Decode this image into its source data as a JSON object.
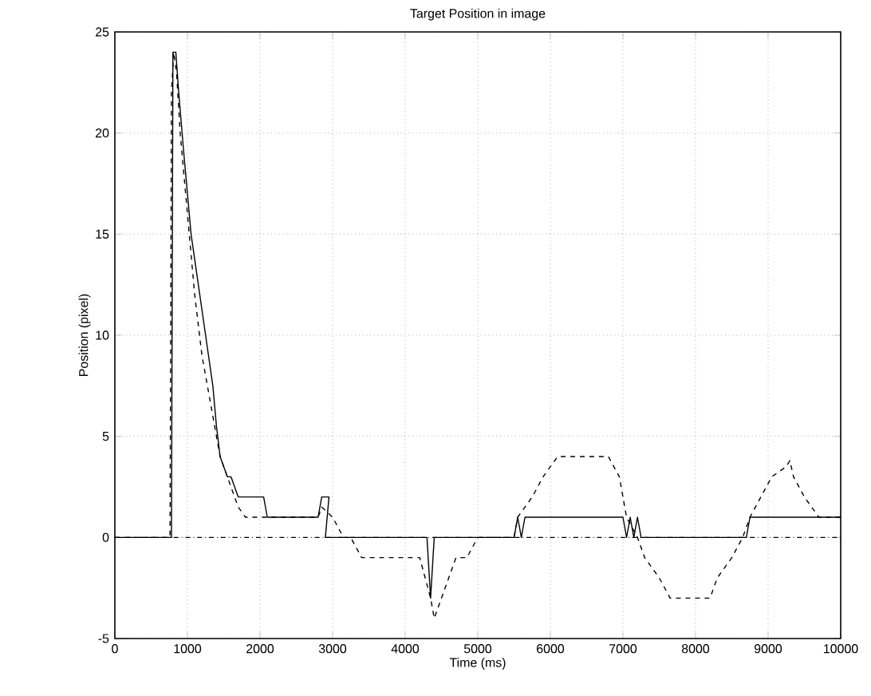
{
  "chart_data": {
    "type": "line",
    "title": "Target Position in image",
    "xlabel": "Time (ms)",
    "ylabel": "Position (pixel)",
    "xlim": [
      0,
      10000
    ],
    "ylim": [
      -5,
      25
    ],
    "xticks": [
      0,
      1000,
      2000,
      3000,
      4000,
      5000,
      6000,
      7000,
      8000,
      9000,
      10000
    ],
    "yticks": [
      -5,
      0,
      5,
      10,
      15,
      20,
      25
    ],
    "grid": true,
    "ref_lines": [
      {
        "axis": "y",
        "value": 0,
        "color": "#000000",
        "line_style": "dashdot"
      }
    ],
    "series": [
      {
        "color": "#000000",
        "line_style": "solid",
        "x": [
          0,
          780,
          800,
          840,
          880,
          950,
          1050,
          1150,
          1250,
          1350,
          1400,
          1450,
          1500,
          1550,
          1600,
          1650,
          1700,
          1850,
          1850,
          2050,
          2100,
          2800,
          2850,
          2950,
          2900,
          4300,
          4350,
          4400,
          4450,
          5500,
          5550,
          5600,
          5650,
          7000,
          7050,
          7100,
          7150,
          7200,
          7250,
          7300,
          8700,
          8750,
          8800,
          10000
        ],
        "values": [
          0,
          0,
          24,
          24,
          22,
          19,
          15,
          12.5,
          10,
          7.5,
          5.5,
          4,
          3.5,
          3,
          3,
          2.5,
          2,
          2,
          2,
          2,
          1,
          1,
          2,
          2,
          0,
          0,
          -3,
          0,
          0,
          0,
          1,
          0,
          1,
          1,
          0,
          1,
          0,
          1,
          0,
          0,
          0,
          1,
          1,
          1
        ]
      },
      {
        "color": "#000000",
        "line_style": "dashed",
        "x": [
          0,
          760,
          780,
          810,
          850,
          900,
          1000,
          1100,
          1200,
          1300,
          1400,
          1450,
          1500,
          1550,
          1600,
          1650,
          1700,
          1800,
          2100,
          2150,
          2800,
          2850,
          3000,
          3150,
          3250,
          3400,
          4200,
          4350,
          4400,
          4500,
          4600,
          4700,
          4850,
          5000,
          5500,
          5550,
          5750,
          5900,
          6100,
          6800,
          6950,
          7000,
          7050,
          7200,
          7300,
          7500,
          7650,
          8200,
          8300,
          8500,
          8650,
          8750,
          8900,
          9050,
          9250,
          9300,
          9350,
          9500,
          9700,
          10000
        ],
        "values": [
          0,
          0,
          22,
          24,
          23,
          20,
          16,
          12,
          9,
          7,
          5,
          4,
          3.5,
          3,
          2.5,
          2,
          1.5,
          1,
          1,
          1,
          1,
          1.5,
          1,
          0,
          0,
          -1,
          -1,
          -3,
          -4,
          -3,
          -2,
          -1,
          -1,
          0,
          0,
          1,
          2,
          3,
          4,
          4,
          3,
          2,
          1,
          0,
          -1,
          -2,
          -3,
          -3,
          -2,
          -1,
          0,
          1,
          2,
          3,
          3.5,
          3.8,
          3,
          2,
          1,
          1
        ]
      }
    ]
  }
}
